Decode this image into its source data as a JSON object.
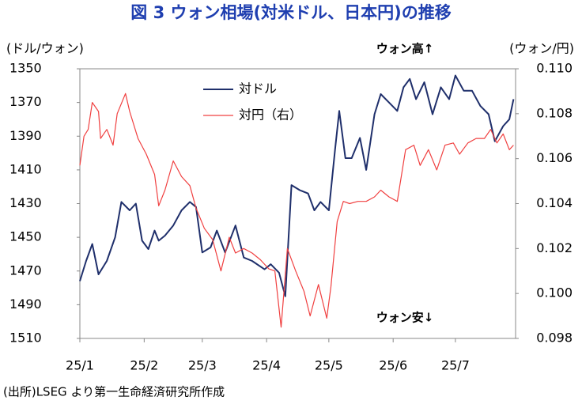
{
  "chart_data": {
    "type": "line",
    "title": "図 3  ウォン相場(対米ドル、日本円)の推移",
    "y_label": "(ドル/ウォン)",
    "y2_label": "(ウォン/円)",
    "annotations": [
      "ウォン高↑",
      "ウォン安↓"
    ],
    "source": "(出所)LSEG より第一生命経済研究所作成",
    "xlim": [
      0,
      210
    ],
    "xticks": [
      {
        "value": 0,
        "label": "25/1"
      },
      {
        "value": 31,
        "label": "25/2"
      },
      {
        "value": 59,
        "label": "25/3"
      },
      {
        "value": 90,
        "label": "25/4"
      },
      {
        "value": 120,
        "label": "25/5"
      },
      {
        "value": 151,
        "label": "25/6"
      },
      {
        "value": 181,
        "label": "25/7"
      }
    ],
    "ylim": [
      1350,
      1510
    ],
    "y_inverted": true,
    "yticks": [
      1350,
      1370,
      1390,
      1410,
      1430,
      1450,
      1470,
      1490,
      1510
    ],
    "y2lim": [
      0.098,
      0.11
    ],
    "y2ticks": [
      0.098,
      {
        "value": 0.1,
        "label": "0.100"
      },
      0.102,
      0.104,
      0.106,
      0.108,
      {
        "value": 0.11,
        "label": "0.110"
      }
    ],
    "legend": "top",
    "series": [
      {
        "name": "対ドル",
        "color": "#1f2f6b",
        "axis": "y",
        "x": [
          0,
          3,
          6,
          9,
          13,
          17,
          20,
          24,
          27,
          30,
          33,
          36,
          38,
          41,
          45,
          49,
          53,
          56,
          59,
          63,
          66,
          70,
          75,
          79,
          83,
          89,
          92,
          96,
          99,
          102,
          106,
          110,
          113,
          116,
          120,
          123,
          125,
          128,
          131,
          135,
          138,
          142,
          145,
          149,
          153,
          156,
          159,
          162,
          166,
          170,
          174,
          178,
          181,
          185,
          189,
          193,
          197,
          200,
          204,
          207,
          209
        ],
        "values": [
          1476,
          1464,
          1454,
          1472,
          1464,
          1450,
          1429,
          1434,
          1430,
          1452,
          1457,
          1446,
          1452,
          1449,
          1443,
          1434,
          1429,
          1432,
          1459,
          1456,
          1446,
          1459,
          1443,
          1462,
          1464,
          1469,
          1466,
          1471,
          1485,
          1419,
          1422,
          1424,
          1434,
          1429,
          1434,
          1398,
          1375,
          1403,
          1403,
          1391,
          1410,
          1377,
          1365,
          1370,
          1375,
          1361,
          1356,
          1368,
          1358,
          1377,
          1361,
          1368,
          1354,
          1363,
          1363,
          1372,
          1377,
          1393,
          1384,
          1380,
          1368
        ]
      },
      {
        "name": "対円（右）",
        "color": "#f04040",
        "axis": "y2",
        "x": [
          0,
          2,
          4,
          6,
          9,
          10,
          13,
          16,
          18,
          22,
          24,
          28,
          32,
          36,
          38,
          41,
          45,
          49,
          53,
          56,
          60,
          64,
          68,
          72,
          75,
          79,
          83,
          87,
          91,
          94,
          97,
          100,
          104,
          108,
          111,
          115,
          119,
          121,
          124,
          127,
          130,
          134,
          138,
          142,
          145,
          149,
          153,
          157,
          161,
          164,
          168,
          172,
          176,
          180,
          183,
          187,
          191,
          195,
          198,
          201,
          204,
          207,
          209
        ],
        "values": [
          0.1057,
          0.107,
          0.1073,
          0.1085,
          0.1081,
          0.1069,
          0.1073,
          0.1066,
          0.108,
          0.1089,
          0.1081,
          0.1069,
          0.1062,
          0.1053,
          0.1039,
          0.1046,
          0.1059,
          0.1052,
          0.1048,
          0.1038,
          0.1029,
          0.1024,
          0.101,
          0.1025,
          0.1018,
          0.102,
          0.1018,
          0.1015,
          0.1011,
          0.101,
          0.0985,
          0.102,
          0.101,
          0.1001,
          0.099,
          0.1004,
          0.0989,
          0.1003,
          0.1032,
          0.1041,
          0.104,
          0.1041,
          0.1041,
          0.1043,
          0.1046,
          0.1043,
          0.1041,
          0.1064,
          0.1066,
          0.1057,
          0.1064,
          0.1055,
          0.1066,
          0.1067,
          0.1062,
          0.1067,
          0.1069,
          0.1069,
          0.1073,
          0.1067,
          0.1071,
          0.1064,
          0.1066
        ]
      }
    ]
  }
}
